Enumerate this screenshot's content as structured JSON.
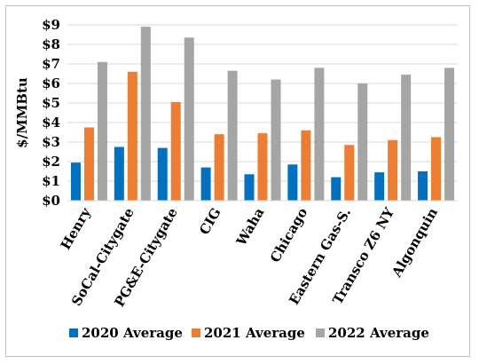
{
  "chart_data": {
    "type": "bar",
    "title": "",
    "xlabel": "",
    "ylabel": "$/MMBtu",
    "ylim": [
      0,
      9
    ],
    "yticks": [
      "$0",
      "$1",
      "$2",
      "$3",
      "$4",
      "$5",
      "$6",
      "$7",
      "$8",
      "$9"
    ],
    "grid": true,
    "legend_position": "bottom",
    "categories": [
      "Henry",
      "SoCal-Citygate",
      "PG&E-Citygate",
      "CIG",
      "Waha",
      "Chicago",
      "Eastern Gas-S.",
      "Transco Z6 NY",
      "Algonquin"
    ],
    "series": [
      {
        "name": "2020 Average",
        "color": "#0070c0",
        "values": [
          1.95,
          2.75,
          2.7,
          1.7,
          1.35,
          1.85,
          1.2,
          1.45,
          1.5
        ]
      },
      {
        "name": "2021 Average",
        "color": "#ed7d31",
        "values": [
          3.75,
          6.6,
          5.05,
          3.4,
          3.45,
          3.6,
          2.85,
          3.1,
          3.25
        ]
      },
      {
        "name": "2022 Average",
        "color": "#a5a5a5",
        "values": [
          7.1,
          8.9,
          8.35,
          6.65,
          6.2,
          6.8,
          6.0,
          6.45,
          6.8
        ]
      }
    ]
  }
}
